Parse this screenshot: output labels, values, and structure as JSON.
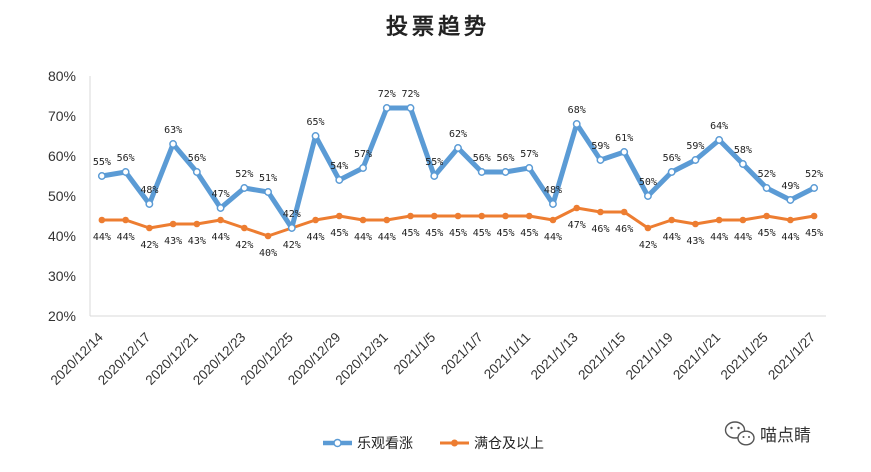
{
  "chart_data": {
    "type": "line",
    "title": "投票趋势",
    "xlabel": "",
    "ylabel": "",
    "ylim": [
      20,
      80
    ],
    "yticks": [
      "20%",
      "30%",
      "40%",
      "50%",
      "60%",
      "70%",
      "80%"
    ],
    "grid": false,
    "legend_position": "bottom",
    "x_tick_labels": [
      "2020/12/14",
      "2020/12/17",
      "2020/12/21",
      "2020/12/23",
      "2020/12/25",
      "2020/12/29",
      "2020/12/31",
      "2021/1/5",
      "2021/1/7",
      "2021/1/11",
      "2021/1/13",
      "2021/1/15",
      "2021/1/19",
      "2021/1/21",
      "2021/1/25",
      "2021/1/27"
    ],
    "series": [
      {
        "name": "乐观看涨",
        "color": "#5b9bd5",
        "values": [
          55,
          56,
          48,
          63,
          56,
          47,
          52,
          51,
          42,
          65,
          54,
          57,
          72,
          72,
          55,
          62,
          56,
          56,
          57,
          48,
          68,
          59,
          61,
          50,
          56,
          59,
          64,
          58,
          52,
          49,
          52
        ],
        "labels": [
          "55%",
          "56%",
          "48%",
          "63%",
          "56%",
          "47%",
          "52%",
          "51%",
          "42%",
          "65%",
          "54%",
          "57%",
          "72%",
          "72%",
          "55%",
          "62%",
          "56%",
          "56%",
          "57%",
          "48%",
          "68%",
          "59%",
          "61%",
          "50%",
          "56%",
          "59%",
          "64%",
          "58%",
          "52%",
          "49%",
          "52%"
        ]
      },
      {
        "name": "满仓及以上",
        "color": "#ed7d31",
        "values": [
          44,
          44,
          42,
          43,
          43,
          44,
          42,
          40,
          42,
          44,
          45,
          44,
          44,
          45,
          45,
          45,
          45,
          45,
          45,
          44,
          47,
          46,
          46,
          42,
          44,
          43,
          44,
          44,
          45,
          44,
          45
        ],
        "labels": [
          "44%",
          "44%",
          "42%",
          "43%",
          "43%",
          "44%",
          "42%",
          "40%",
          "42%",
          "44%",
          "45%",
          "44%",
          "44%",
          "45%",
          "45%",
          "45%",
          "45%",
          "45%",
          "45%",
          "44%",
          "47%",
          "46%",
          "46%",
          "42%",
          "44%",
          "43%",
          "44%",
          "44%",
          "45%",
          "44%",
          "45%"
        ]
      }
    ]
  },
  "watermark": {
    "text": "喵点睛",
    "icon": "wechat-icon"
  }
}
